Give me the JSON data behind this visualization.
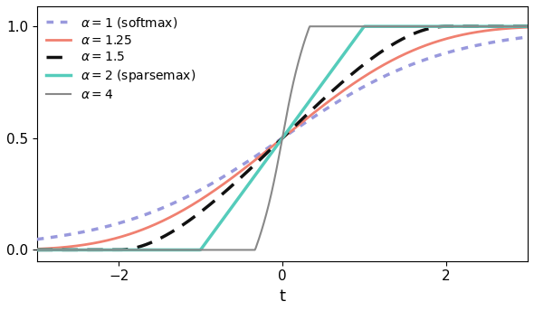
{
  "title": "",
  "xlabel": "t",
  "xlim": [
    -3.0,
    3.0
  ],
  "ylim": [
    -0.05,
    1.09
  ],
  "yticks": [
    0.0,
    0.5,
    1.0
  ],
  "xticks": [
    -2,
    0,
    2
  ],
  "figsize": [
    5.9,
    3.44
  ],
  "dpi": 100,
  "lines": [
    {
      "alpha_val": 1.0,
      "label": "$\\alpha = 1$ (softmax)",
      "color": "#9999dd",
      "lw": 2.5,
      "ls": "dotted"
    },
    {
      "alpha_val": 1.25,
      "label": "$\\alpha = 1.25$",
      "color": "#f08070",
      "lw": 2.0,
      "ls": "solid"
    },
    {
      "alpha_val": 1.5,
      "label": "$\\alpha = 1.5$",
      "color": "#111111",
      "lw": 2.5,
      "ls": "dashed"
    },
    {
      "alpha_val": 2.0,
      "label": "$\\alpha = 2$ (sparsemax)",
      "color": "#55ccbb",
      "lw": 2.5,
      "ls": "solid"
    },
    {
      "alpha_val": 4.0,
      "label": "$\\alpha = 4$",
      "color": "#888888",
      "lw": 1.5,
      "ls": "solid"
    }
  ]
}
